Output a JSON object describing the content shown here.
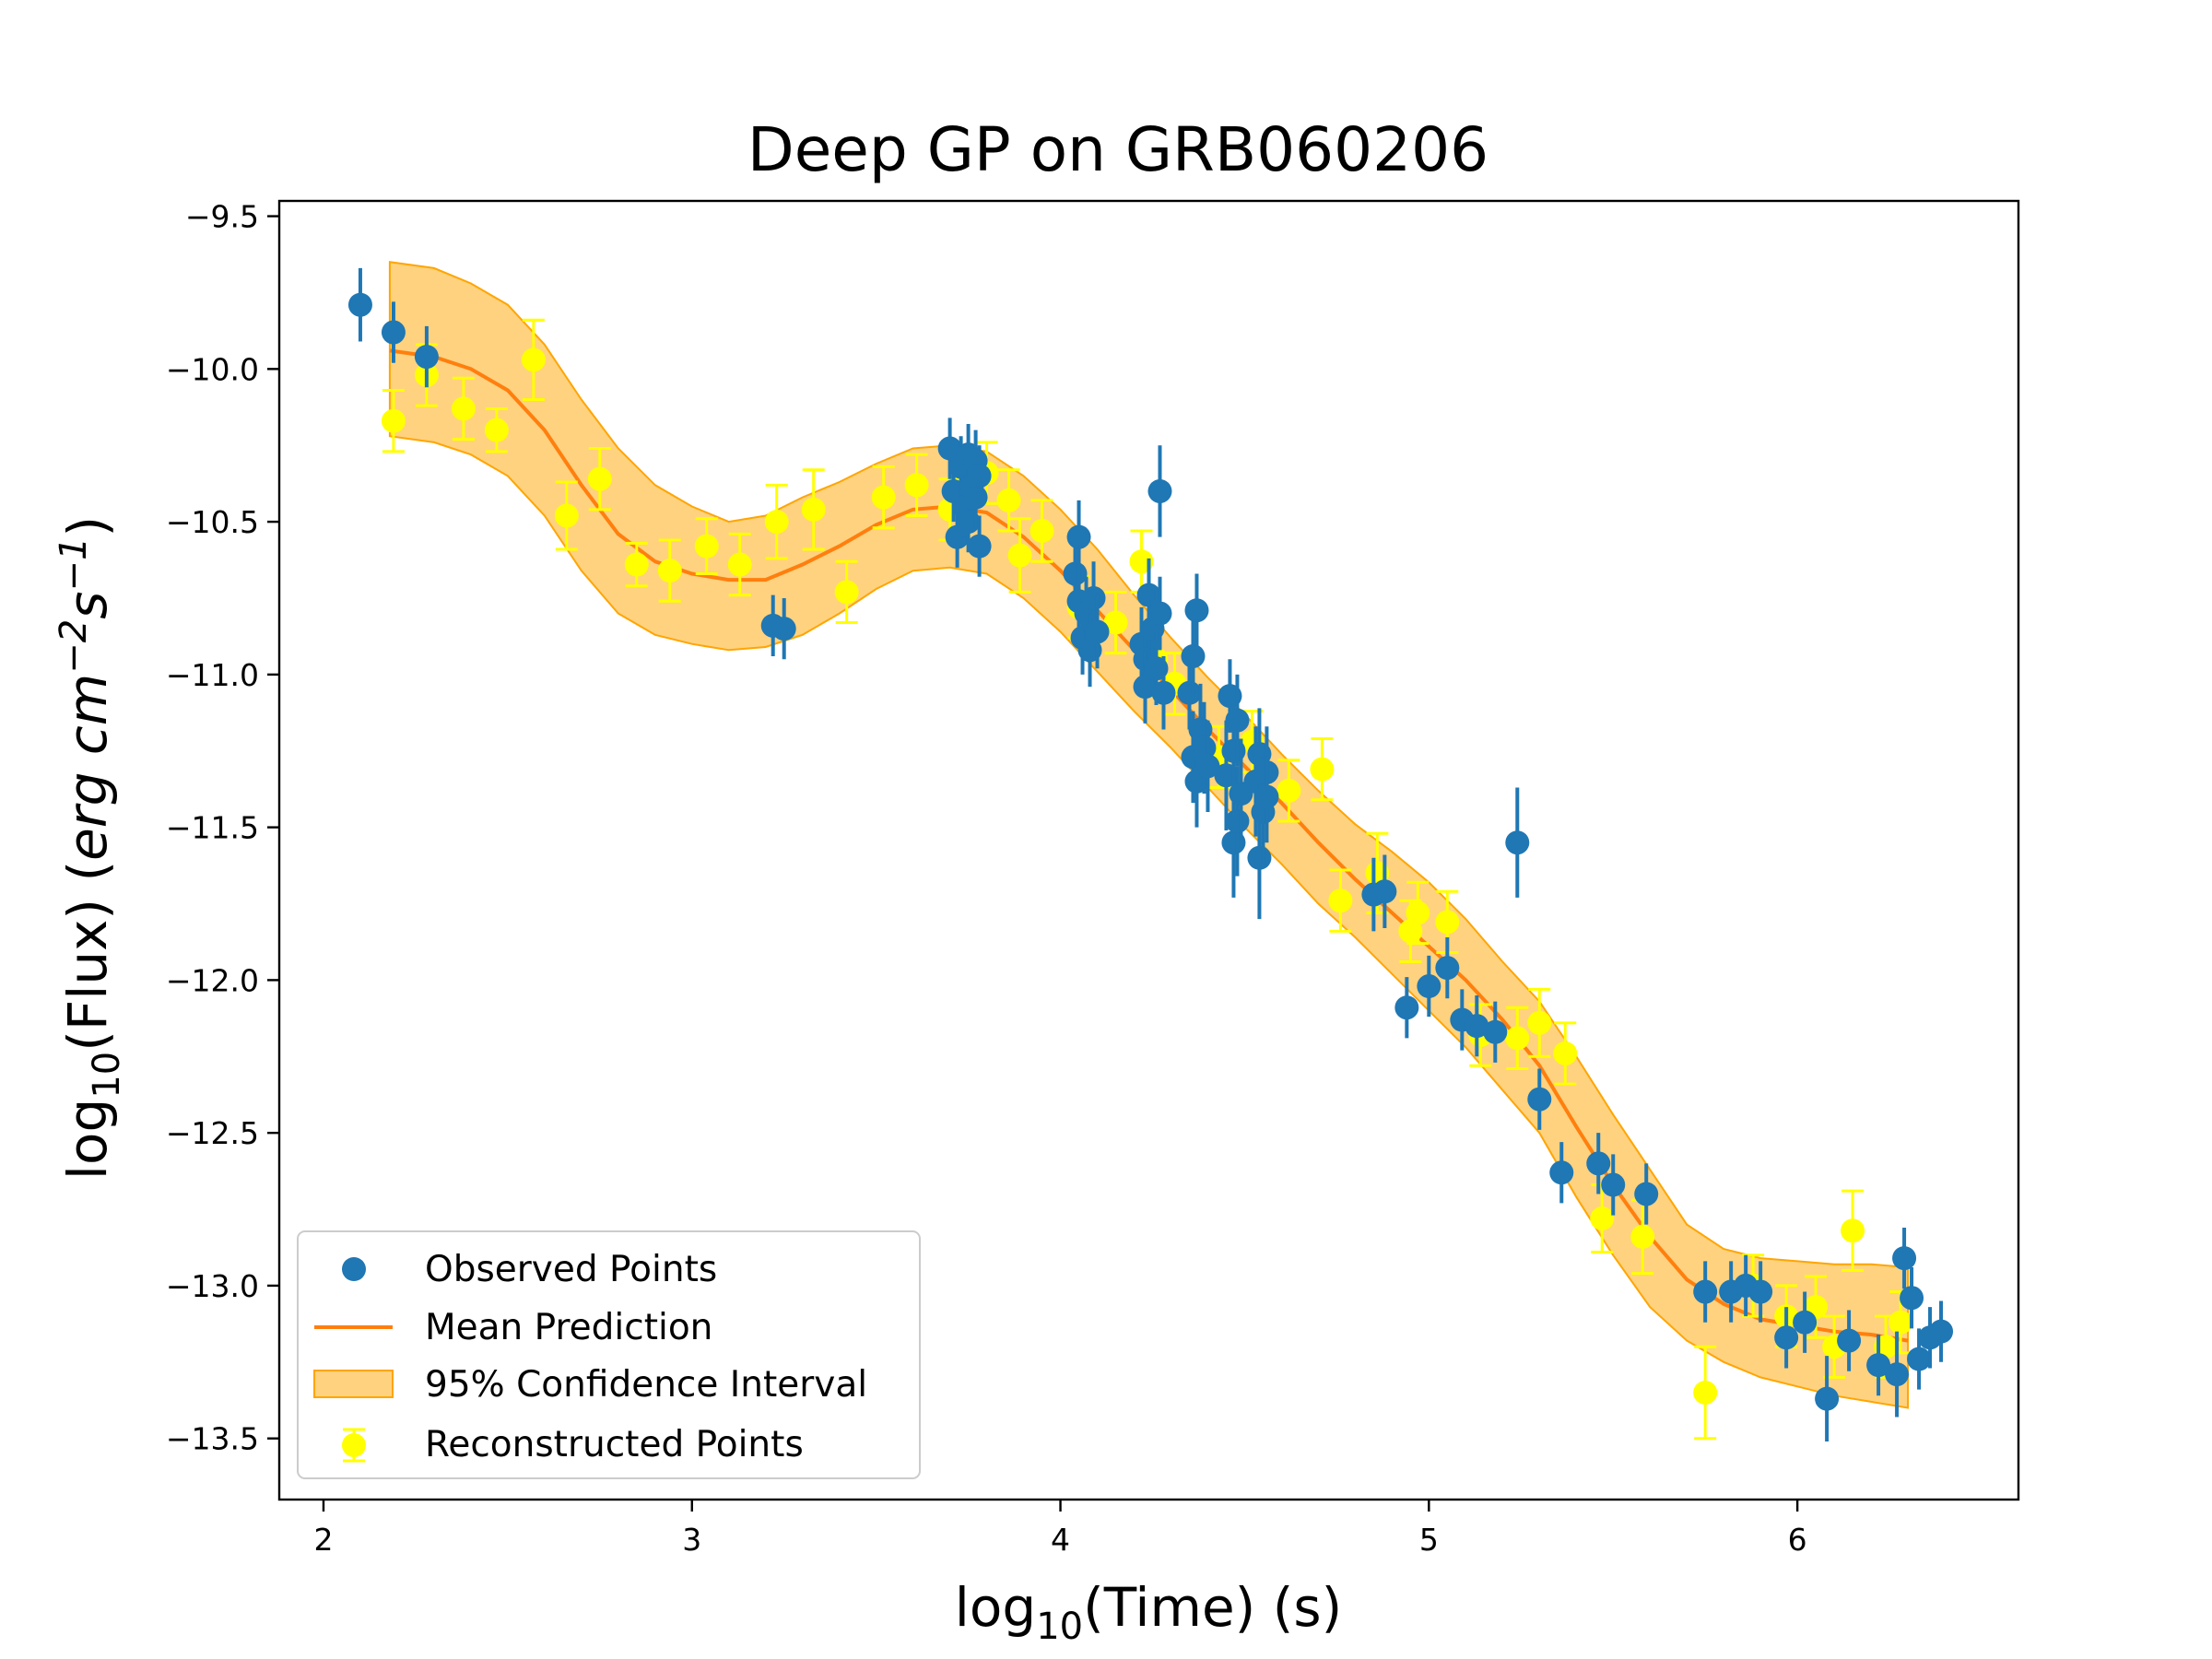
{
  "chart_data": {
    "type": "scatter",
    "title": "Deep GP on GRB060206",
    "xlabel": "log10(Time) (s)",
    "ylabel": "log10(Flux) (erg cm^-2 s^-1)",
    "xlim": [
      1.88,
      6.6
    ],
    "ylim": [
      -13.7,
      -9.45
    ],
    "xticks": [
      2,
      3,
      4,
      5,
      6
    ],
    "yticks": [
      -9.5,
      -10.0,
      -10.5,
      -11.0,
      -11.5,
      -12.0,
      -12.5,
      -13.0,
      -13.5
    ],
    "ytick_labels": [
      "−9.5",
      "−10.0",
      "−10.5",
      "−11.0",
      "−11.5",
      "−12.0",
      "−12.5",
      "−13.0",
      "−13.5"
    ],
    "xtick_labels": [
      "2",
      "3",
      "4",
      "5",
      "6"
    ],
    "legend_position": "bottom-left",
    "legend": [
      {
        "key": "observed",
        "label": "Observed Points"
      },
      {
        "key": "mean",
        "label": "Mean Prediction"
      },
      {
        "key": "ci",
        "label": "95% Confidence Interval"
      },
      {
        "key": "reconstructed",
        "label": "Reconstructed Points"
      }
    ],
    "colors": {
      "observed": "#1f77b4",
      "mean": "#ff7f0e",
      "ci_fill": "#ffa500",
      "reconstructed": "#ffff00"
    },
    "mean_prediction": [
      [
        2.18,
        -9.94
      ],
      [
        2.3,
        -9.96
      ],
      [
        2.4,
        -10.0
      ],
      [
        2.5,
        -10.07
      ],
      [
        2.6,
        -10.2
      ],
      [
        2.7,
        -10.38
      ],
      [
        2.8,
        -10.54
      ],
      [
        2.9,
        -10.63
      ],
      [
        3.0,
        -10.67
      ],
      [
        3.1,
        -10.69
      ],
      [
        3.2,
        -10.69
      ],
      [
        3.3,
        -10.64
      ],
      [
        3.4,
        -10.58
      ],
      [
        3.5,
        -10.51
      ],
      [
        3.6,
        -10.46
      ],
      [
        3.7,
        -10.45
      ],
      [
        3.8,
        -10.47
      ],
      [
        3.9,
        -10.55
      ],
      [
        4.0,
        -10.66
      ],
      [
        4.1,
        -10.79
      ],
      [
        4.2,
        -10.92
      ],
      [
        4.3,
        -11.05
      ],
      [
        4.4,
        -11.18
      ],
      [
        4.5,
        -11.3
      ],
      [
        4.6,
        -11.42
      ],
      [
        4.7,
        -11.55
      ],
      [
        4.8,
        -11.67
      ],
      [
        4.9,
        -11.78
      ],
      [
        5.0,
        -11.89
      ],
      [
        5.1,
        -12.0
      ],
      [
        5.2,
        -12.13
      ],
      [
        5.3,
        -12.28
      ],
      [
        5.4,
        -12.48
      ],
      [
        5.5,
        -12.67
      ],
      [
        5.6,
        -12.84
      ],
      [
        5.7,
        -12.98
      ],
      [
        5.8,
        -13.06
      ],
      [
        5.9,
        -13.11
      ],
      [
        6.0,
        -13.13
      ],
      [
        6.1,
        -13.15
      ],
      [
        6.2,
        -13.16
      ],
      [
        6.3,
        -13.18
      ]
    ],
    "ci_upper": [
      [
        2.18,
        -9.65
      ],
      [
        2.3,
        -9.67
      ],
      [
        2.4,
        -9.72
      ],
      [
        2.5,
        -9.79
      ],
      [
        2.6,
        -9.92
      ],
      [
        2.7,
        -10.1
      ],
      [
        2.8,
        -10.26
      ],
      [
        2.9,
        -10.38
      ],
      [
        3.0,
        -10.45
      ],
      [
        3.1,
        -10.5
      ],
      [
        3.2,
        -10.48
      ],
      [
        3.3,
        -10.42
      ],
      [
        3.4,
        -10.37
      ],
      [
        3.5,
        -10.31
      ],
      [
        3.6,
        -10.26
      ],
      [
        3.7,
        -10.25
      ],
      [
        3.8,
        -10.27
      ],
      [
        3.9,
        -10.35
      ],
      [
        4.0,
        -10.46
      ],
      [
        4.1,
        -10.59
      ],
      [
        4.2,
        -10.74
      ],
      [
        4.3,
        -10.88
      ],
      [
        4.4,
        -11.01
      ],
      [
        4.5,
        -11.13
      ],
      [
        4.6,
        -11.26
      ],
      [
        4.7,
        -11.38
      ],
      [
        4.8,
        -11.49
      ],
      [
        4.9,
        -11.58
      ],
      [
        5.0,
        -11.68
      ],
      [
        5.1,
        -11.8
      ],
      [
        5.2,
        -11.94
      ],
      [
        5.3,
        -12.07
      ],
      [
        5.4,
        -12.25
      ],
      [
        5.5,
        -12.44
      ],
      [
        5.6,
        -12.62
      ],
      [
        5.7,
        -12.8
      ],
      [
        5.8,
        -12.88
      ],
      [
        5.9,
        -12.91
      ],
      [
        6.0,
        -12.92
      ],
      [
        6.1,
        -12.93
      ],
      [
        6.2,
        -12.93
      ],
      [
        6.3,
        -12.94
      ]
    ],
    "ci_lower": [
      [
        2.18,
        -10.22
      ],
      [
        2.3,
        -10.24
      ],
      [
        2.4,
        -10.28
      ],
      [
        2.5,
        -10.35
      ],
      [
        2.6,
        -10.48
      ],
      [
        2.7,
        -10.66
      ],
      [
        2.8,
        -10.8
      ],
      [
        2.9,
        -10.87
      ],
      [
        3.0,
        -10.9
      ],
      [
        3.1,
        -10.92
      ],
      [
        3.2,
        -10.91
      ],
      [
        3.3,
        -10.87
      ],
      [
        3.4,
        -10.8
      ],
      [
        3.5,
        -10.72
      ],
      [
        3.6,
        -10.66
      ],
      [
        3.7,
        -10.65
      ],
      [
        3.8,
        -10.67
      ],
      [
        3.9,
        -10.75
      ],
      [
        4.0,
        -10.86
      ],
      [
        4.1,
        -10.99
      ],
      [
        4.2,
        -11.12
      ],
      [
        4.3,
        -11.24
      ],
      [
        4.4,
        -11.37
      ],
      [
        4.5,
        -11.5
      ],
      [
        4.6,
        -11.62
      ],
      [
        4.7,
        -11.75
      ],
      [
        4.8,
        -11.86
      ],
      [
        4.9,
        -11.98
      ],
      [
        5.0,
        -12.1
      ],
      [
        5.1,
        -12.22
      ],
      [
        5.2,
        -12.36
      ],
      [
        5.3,
        -12.5
      ],
      [
        5.4,
        -12.71
      ],
      [
        5.5,
        -12.9
      ],
      [
        5.6,
        -13.07
      ],
      [
        5.7,
        -13.18
      ],
      [
        5.8,
        -13.25
      ],
      [
        5.9,
        -13.3
      ],
      [
        6.0,
        -13.33
      ],
      [
        6.1,
        -13.36
      ],
      [
        6.2,
        -13.38
      ],
      [
        6.3,
        -13.4
      ]
    ],
    "observed_points": [
      {
        "x": 2.1,
        "y": -9.79,
        "err": 0.12
      },
      {
        "x": 2.19,
        "y": -9.88,
        "err": 0.1
      },
      {
        "x": 2.28,
        "y": -9.96,
        "err": 0.1
      },
      {
        "x": 3.22,
        "y": -10.84,
        "err": 0.1
      },
      {
        "x": 3.25,
        "y": -10.85,
        "err": 0.1
      },
      {
        "x": 3.7,
        "y": -10.26,
        "err": 0.1
      },
      {
        "x": 3.71,
        "y": -10.4,
        "err": 0.1
      },
      {
        "x": 3.72,
        "y": -10.55,
        "err": 0.1
      },
      {
        "x": 3.73,
        "y": -10.32,
        "err": 0.1
      },
      {
        "x": 3.74,
        "y": -10.45,
        "err": 0.1
      },
      {
        "x": 3.75,
        "y": -10.28,
        "err": 0.1
      },
      {
        "x": 3.75,
        "y": -10.5,
        "err": 0.1
      },
      {
        "x": 3.76,
        "y": -10.38,
        "err": 0.1
      },
      {
        "x": 3.77,
        "y": -10.3,
        "err": 0.1
      },
      {
        "x": 3.77,
        "y": -10.42,
        "err": 0.1
      },
      {
        "x": 3.78,
        "y": -10.35,
        "err": 0.1
      },
      {
        "x": 3.78,
        "y": -10.58,
        "err": 0.1
      },
      {
        "x": 4.04,
        "y": -10.67,
        "err": 0.12
      },
      {
        "x": 4.05,
        "y": -10.55,
        "err": 0.12
      },
      {
        "x": 4.05,
        "y": -10.76,
        "err": 0.12
      },
      {
        "x": 4.06,
        "y": -10.88,
        "err": 0.12
      },
      {
        "x": 4.07,
        "y": -10.8,
        "err": 0.12
      },
      {
        "x": 4.08,
        "y": -10.92,
        "err": 0.12
      },
      {
        "x": 4.09,
        "y": -10.75,
        "err": 0.12
      },
      {
        "x": 4.1,
        "y": -10.86,
        "err": 0.12
      },
      {
        "x": 4.22,
        "y": -10.9,
        "err": 0.12
      },
      {
        "x": 4.23,
        "y": -10.95,
        "err": 0.12
      },
      {
        "x": 4.23,
        "y": -11.04,
        "err": 0.12
      },
      {
        "x": 4.24,
        "y": -10.74,
        "err": 0.12
      },
      {
        "x": 4.25,
        "y": -10.85,
        "err": 0.12
      },
      {
        "x": 4.26,
        "y": -10.98,
        "err": 0.12
      },
      {
        "x": 4.27,
        "y": -10.4,
        "err": 0.15
      },
      {
        "x": 4.27,
        "y": -10.8,
        "err": 0.12
      },
      {
        "x": 4.28,
        "y": -11.06,
        "err": 0.12
      },
      {
        "x": 4.35,
        "y": -11.06,
        "err": 0.12
      },
      {
        "x": 4.36,
        "y": -11.27,
        "err": 0.15
      },
      {
        "x": 4.36,
        "y": -10.94,
        "err": 0.12
      },
      {
        "x": 4.37,
        "y": -11.35,
        "err": 0.15
      },
      {
        "x": 4.37,
        "y": -10.79,
        "err": 0.12
      },
      {
        "x": 4.38,
        "y": -11.18,
        "err": 0.15
      },
      {
        "x": 4.39,
        "y": -11.24,
        "err": 0.15
      },
      {
        "x": 4.4,
        "y": -11.3,
        "err": 0.15
      },
      {
        "x": 4.45,
        "y": -11.33,
        "err": 0.18
      },
      {
        "x": 4.46,
        "y": -11.07,
        "err": 0.12
      },
      {
        "x": 4.47,
        "y": -11.55,
        "err": 0.18
      },
      {
        "x": 4.47,
        "y": -11.25,
        "err": 0.15
      },
      {
        "x": 4.48,
        "y": -11.48,
        "err": 0.18
      },
      {
        "x": 4.48,
        "y": -11.15,
        "err": 0.15
      },
      {
        "x": 4.49,
        "y": -11.39,
        "err": 0.18
      },
      {
        "x": 4.53,
        "y": -11.35,
        "err": 0.18
      },
      {
        "x": 4.54,
        "y": -11.26,
        "err": 0.15
      },
      {
        "x": 4.54,
        "y": -11.6,
        "err": 0.2
      },
      {
        "x": 4.55,
        "y": -11.45,
        "err": 0.18
      },
      {
        "x": 4.56,
        "y": -11.32,
        "err": 0.15
      },
      {
        "x": 4.56,
        "y": -11.4,
        "err": 0.15
      },
      {
        "x": 4.85,
        "y": -11.72,
        "err": 0.12
      },
      {
        "x": 4.88,
        "y": -11.71,
        "err": 0.12
      },
      {
        "x": 4.94,
        "y": -12.09,
        "err": 0.1
      },
      {
        "x": 5.0,
        "y": -12.02,
        "err": 0.1
      },
      {
        "x": 5.05,
        "y": -11.96,
        "err": 0.1
      },
      {
        "x": 5.09,
        "y": -12.13,
        "err": 0.1
      },
      {
        "x": 5.13,
        "y": -12.15,
        "err": 0.1
      },
      {
        "x": 5.18,
        "y": -12.17,
        "err": 0.1
      },
      {
        "x": 5.24,
        "y": -11.55,
        "err": 0.18
      },
      {
        "x": 5.3,
        "y": -12.39,
        "err": 0.1
      },
      {
        "x": 5.36,
        "y": -12.63,
        "err": 0.1
      },
      {
        "x": 5.46,
        "y": -12.6,
        "err": 0.1
      },
      {
        "x": 5.5,
        "y": -12.67,
        "err": 0.1
      },
      {
        "x": 5.59,
        "y": -12.7,
        "err": 0.1
      },
      {
        "x": 5.75,
        "y": -13.02,
        "err": 0.1
      },
      {
        "x": 5.82,
        "y": -13.02,
        "err": 0.1
      },
      {
        "x": 5.86,
        "y": -13.0,
        "err": 0.1
      },
      {
        "x": 5.9,
        "y": -13.02,
        "err": 0.1
      },
      {
        "x": 5.97,
        "y": -13.17,
        "err": 0.1
      },
      {
        "x": 6.02,
        "y": -13.12,
        "err": 0.1
      },
      {
        "x": 6.08,
        "y": -13.37,
        "err": 0.14
      },
      {
        "x": 6.14,
        "y": -13.18,
        "err": 0.1
      },
      {
        "x": 6.22,
        "y": -13.26,
        "err": 0.1
      },
      {
        "x": 6.27,
        "y": -13.29,
        "err": 0.14
      },
      {
        "x": 6.29,
        "y": -12.91,
        "err": 0.1
      },
      {
        "x": 6.31,
        "y": -13.04,
        "err": 0.1
      },
      {
        "x": 6.33,
        "y": -13.24,
        "err": 0.1
      },
      {
        "x": 6.36,
        "y": -13.17,
        "err": 0.1
      },
      {
        "x": 6.39,
        "y": -13.15,
        "err": 0.1
      }
    ],
    "reconstructed_points": [
      {
        "x": 2.19,
        "y": -10.17,
        "err": 0.1
      },
      {
        "x": 2.28,
        "y": -10.02,
        "err": 0.1
      },
      {
        "x": 2.38,
        "y": -10.13,
        "err": 0.1
      },
      {
        "x": 2.47,
        "y": -10.2,
        "err": 0.07
      },
      {
        "x": 2.57,
        "y": -9.97,
        "err": 0.13
      },
      {
        "x": 2.66,
        "y": -10.48,
        "err": 0.11
      },
      {
        "x": 2.75,
        "y": -10.36,
        "err": 0.1
      },
      {
        "x": 2.85,
        "y": -10.64,
        "err": 0.07
      },
      {
        "x": 2.94,
        "y": -10.66,
        "err": 0.1
      },
      {
        "x": 3.04,
        "y": -10.58,
        "err": 0.09
      },
      {
        "x": 3.13,
        "y": -10.64,
        "err": 0.1
      },
      {
        "x": 3.23,
        "y": -10.5,
        "err": 0.12
      },
      {
        "x": 3.33,
        "y": -10.46,
        "err": 0.13
      },
      {
        "x": 3.42,
        "y": -10.73,
        "err": 0.1
      },
      {
        "x": 3.52,
        "y": -10.42,
        "err": 0.1
      },
      {
        "x": 3.61,
        "y": -10.38,
        "err": 0.1
      },
      {
        "x": 3.7,
        "y": -10.46,
        "err": 0.1
      },
      {
        "x": 3.8,
        "y": -10.34,
        "err": 0.1
      },
      {
        "x": 3.86,
        "y": -10.43,
        "err": 0.1
      },
      {
        "x": 3.89,
        "y": -10.61,
        "err": 0.12
      },
      {
        "x": 3.95,
        "y": -10.53,
        "err": 0.1
      },
      {
        "x": 4.05,
        "y": -10.78,
        "err": 0.1
      },
      {
        "x": 4.15,
        "y": -10.83,
        "err": 0.1
      },
      {
        "x": 4.22,
        "y": -10.63,
        "err": 0.1
      },
      {
        "x": 4.26,
        "y": -10.95,
        "err": 0.12
      },
      {
        "x": 4.31,
        "y": -11.03,
        "err": 0.1
      },
      {
        "x": 4.43,
        "y": -11.27,
        "err": 0.1
      },
      {
        "x": 4.52,
        "y": -11.22,
        "err": 0.1
      },
      {
        "x": 4.62,
        "y": -11.38,
        "err": 0.1
      },
      {
        "x": 4.71,
        "y": -11.31,
        "err": 0.1
      },
      {
        "x": 4.76,
        "y": -11.74,
        "err": 0.1
      },
      {
        "x": 4.86,
        "y": -11.65,
        "err": 0.13
      },
      {
        "x": 4.95,
        "y": -11.84,
        "err": 0.1
      },
      {
        "x": 4.97,
        "y": -11.78,
        "err": 0.1
      },
      {
        "x": 5.05,
        "y": -11.81,
        "err": 0.1
      },
      {
        "x": 5.14,
        "y": -12.18,
        "err": 0.1
      },
      {
        "x": 5.24,
        "y": -12.19,
        "err": 0.1
      },
      {
        "x": 5.3,
        "y": -12.14,
        "err": 0.11
      },
      {
        "x": 5.37,
        "y": -12.24,
        "err": 0.1
      },
      {
        "x": 5.47,
        "y": -12.78,
        "err": 0.11
      },
      {
        "x": 5.58,
        "y": -12.84,
        "err": 0.12
      },
      {
        "x": 5.75,
        "y": -13.35,
        "err": 0.15
      },
      {
        "x": 5.88,
        "y": -13.0,
        "err": 0.1
      },
      {
        "x": 5.97,
        "y": -13.1,
        "err": 0.1
      },
      {
        "x": 6.05,
        "y": -13.07,
        "err": 0.1
      },
      {
        "x": 6.1,
        "y": -13.2,
        "err": 0.1
      },
      {
        "x": 6.15,
        "y": -12.82,
        "err": 0.13
      },
      {
        "x": 6.24,
        "y": -13.2,
        "err": 0.1
      },
      {
        "x": 6.28,
        "y": -13.12,
        "err": 0.1
      }
    ]
  }
}
